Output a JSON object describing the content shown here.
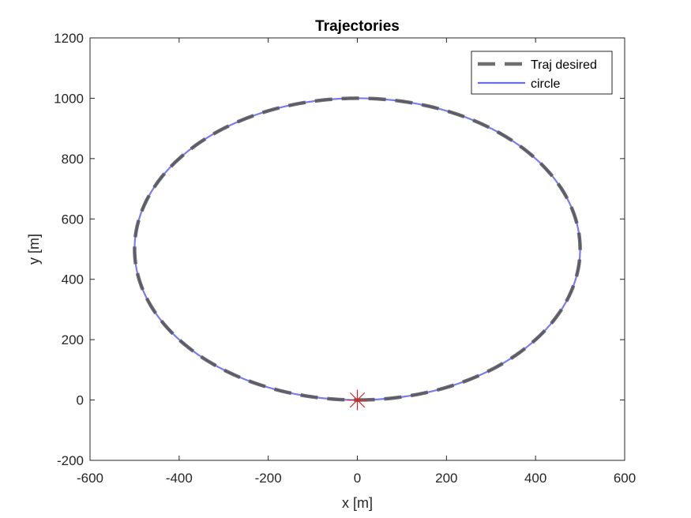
{
  "chart_data": {
    "type": "line",
    "title": "Trajectories",
    "xlabel": "x [m]",
    "ylabel": "y [m]",
    "xlim": [
      -600,
      600
    ],
    "ylim": [
      -200,
      1200
    ],
    "xticks": [
      -600,
      -400,
      -200,
      0,
      200,
      400,
      600
    ],
    "yticks": [
      -200,
      0,
      200,
      400,
      600,
      800,
      1000,
      1200
    ],
    "grid": false,
    "legend_location": "top-right",
    "series": [
      {
        "name": "Traj desired",
        "style": "dashed",
        "color": "#555555",
        "shape": "ellipse",
        "center": [
          0,
          500
        ],
        "radius_x": 500,
        "radius_y": 500
      },
      {
        "name": "circle",
        "style": "solid",
        "color": "#6b6bf0",
        "shape": "ellipse",
        "center": [
          0,
          500
        ],
        "radius_x": 500,
        "radius_y": 500
      }
    ],
    "markers": [
      {
        "type": "asterisk",
        "x": 0,
        "y": 0,
        "color": "#d62728"
      }
    ]
  }
}
